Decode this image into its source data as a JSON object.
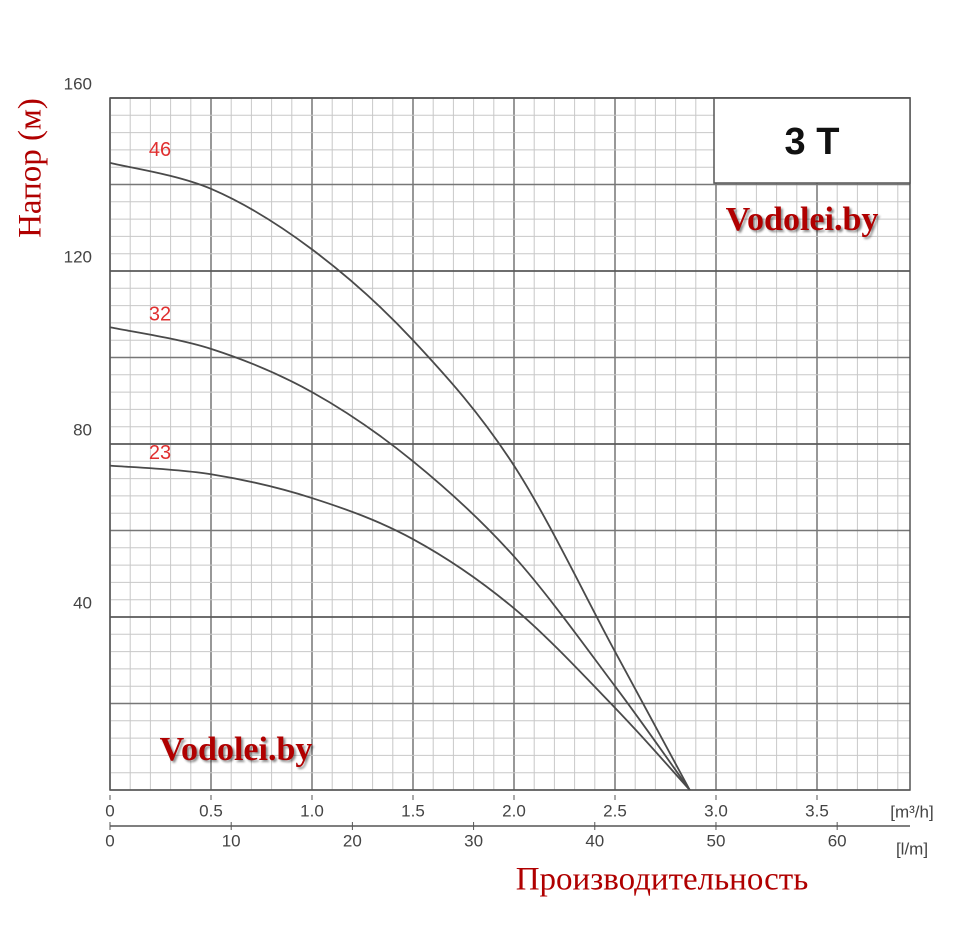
{
  "chart_data": {
    "type": "line",
    "title": "3 T",
    "y_label": "Напор (м)",
    "x_label": "Производительность",
    "x_unit": "[m³/h]",
    "x2_unit": "[l/m]",
    "watermarks": [
      "Vodolei.by",
      "Vodolei.by"
    ],
    "x": [
      0,
      0.5,
      1.0,
      1.5,
      2.0,
      2.5,
      2.87
    ],
    "series": [
      {
        "name": "46",
        "color": "#4a4a4a",
        "values": [
          145,
          139,
          125,
          104,
          75,
          32,
          0
        ]
      },
      {
        "name": "32",
        "color": "#4a4a4a",
        "values": [
          107,
          102,
          92,
          76,
          54,
          24,
          0
        ]
      },
      {
        "name": "23",
        "color": "#4a4a4a",
        "values": [
          75,
          73,
          67.5,
          58,
          42,
          19,
          0
        ]
      }
    ],
    "xlim": [
      0,
      4
    ],
    "xticks": [
      0,
      0.5,
      {
        "value": 1,
        "label": "1.0"
      },
      1.5,
      {
        "value": 2,
        "label": "2.0"
      },
      2.5,
      {
        "value": 3,
        "label": "3.0"
      },
      3.5
    ],
    "x2lim": [
      0,
      66.67
    ],
    "x2ticks": [
      0,
      10,
      20,
      30,
      40,
      50,
      60
    ],
    "ylim": [
      0,
      160
    ],
    "yticks": [
      40,
      80,
      120,
      160
    ],
    "grid": true
  }
}
